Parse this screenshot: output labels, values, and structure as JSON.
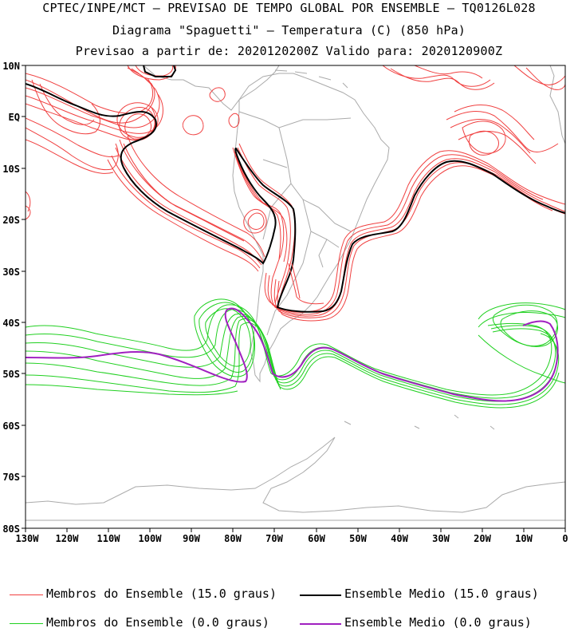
{
  "title": {
    "line1": "CPTEC/INPE/MCT – PREVISAO DE TEMPO GLOBAL POR ENSEMBLE – TQ0126L028",
    "line2": "Diagrama \"Spaguetti\" – Temperatura (C) (850 hPa)",
    "line3": "Previsao a partir de: 2020120200Z  Valido para: 2020120900Z"
  },
  "map": {
    "lat_labels": [
      "10N",
      "EQ",
      "10S",
      "20S",
      "30S",
      "40S",
      "50S",
      "60S",
      "70S",
      "80S"
    ],
    "lon_labels": [
      "130W",
      "120W",
      "110W",
      "100W",
      "90W",
      "80W",
      "70W",
      "60W",
      "50W",
      "40W",
      "30W",
      "20W",
      "10W",
      "0"
    ],
    "lat_range": [
      10,
      -80
    ],
    "lon_range": [
      -130,
      0
    ]
  },
  "legend": {
    "members_15": "Membros do Ensemble (15.0 graus)",
    "mean_15": "Ensemble Medio (15.0 graus)",
    "members_0": "Membros do Ensemble (0.0 graus)",
    "mean_0": "Ensemble Medio (0.0 graus)"
  },
  "colors": {
    "members_15": "#f04040",
    "mean_15": "#000000",
    "members_0": "#20d020",
    "mean_0": "#a020c0",
    "coastline": "#aaaaaa"
  }
}
